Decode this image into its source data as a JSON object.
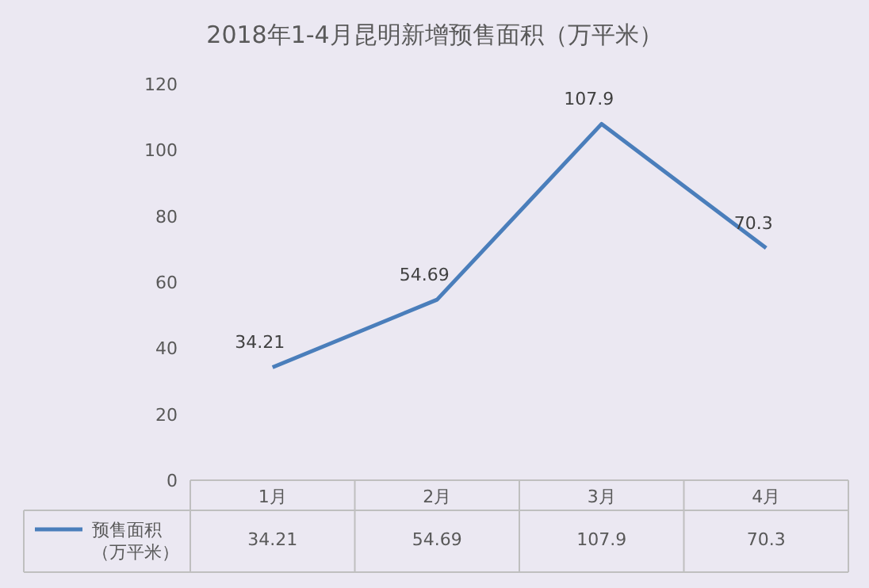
{
  "chart_data": {
    "type": "line",
    "title": "2018年1-4月昆明新增预售面积（万平米）",
    "categories": [
      "1月",
      "2月",
      "3月",
      "4月"
    ],
    "series": [
      {
        "name": "预售面积（万平米）",
        "color": "#4a7ebb",
        "values": [
          34.21,
          54.69,
          107.9,
          70.3
        ],
        "value_labels": [
          "34.21",
          "54.69",
          "107.9",
          "70.3"
        ]
      }
    ],
    "ylim": [
      0,
      120
    ],
    "yticks": [
      0,
      20,
      40,
      60,
      80,
      100,
      120
    ],
    "grid": false,
    "legend": "bottom left",
    "marker": "none",
    "line_style": "solid"
  }
}
